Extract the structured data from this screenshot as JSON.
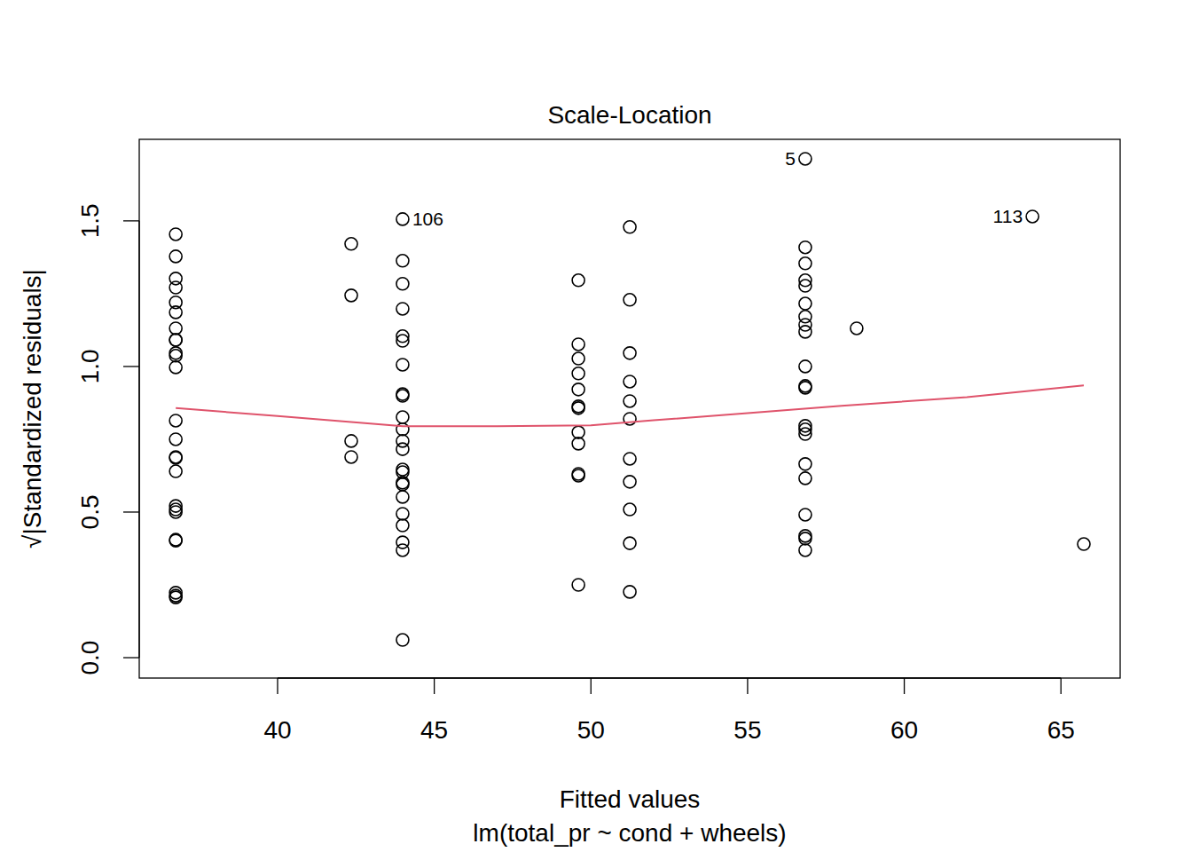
{
  "chart_data": {
    "type": "scatter",
    "title": "Scale-Location",
    "x_label": "Fitted values",
    "subtitle": "lm(total_pr ~ cond + wheels)",
    "y_label": "√|Standardized residuals|",
    "xlim": [
      35.585,
      66.89
    ],
    "ylim": [
      -0.07,
      1.78
    ],
    "xticks": [
      40,
      45,
      50,
      55,
      60,
      65
    ],
    "yticks": [
      {
        "value": 0,
        "label": "0.0"
      },
      {
        "value": 0.5,
        "label": "0.5"
      },
      {
        "value": 1,
        "label": "1.0"
      },
      {
        "value": 1.5,
        "label": "1.5"
      }
    ],
    "grid": false,
    "series": [
      {
        "type": "scatter",
        "marker": "circle",
        "color": "#000000",
        "x": [
          36.75,
          36.75,
          36.75,
          36.75,
          36.75,
          36.75,
          36.75,
          36.75,
          36.75,
          36.75,
          36.75,
          36.75,
          36.75,
          36.75,
          36.75,
          36.75,
          36.75,
          36.75,
          36.75,
          36.75,
          36.75,
          36.75,
          36.75,
          36.75,
          36.75,
          42.35,
          42.35,
          42.35,
          42.35,
          43.99,
          43.99,
          43.99,
          43.99,
          43.99,
          43.99,
          43.99,
          43.99,
          43.99,
          43.99,
          43.99,
          43.99,
          43.99,
          43.99,
          43.99,
          43.99,
          43.99,
          43.99,
          43.99,
          43.99,
          43.99,
          43.99,
          43.99,
          49.6,
          49.6,
          49.6,
          49.6,
          49.6,
          49.6,
          49.6,
          49.6,
          49.6,
          49.6,
          49.6,
          49.6,
          51.24,
          51.24,
          51.24,
          51.24,
          51.24,
          51.24,
          51.24,
          51.24,
          51.24,
          51.24,
          51.24,
          56.84,
          56.84,
          56.84,
          56.84,
          56.84,
          56.84,
          56.84,
          56.84,
          56.84,
          56.84,
          56.84,
          56.84,
          56.84,
          56.84,
          56.84,
          56.84,
          56.84,
          56.84,
          56.84,
          56.84,
          56.84,
          58.48,
          64.09,
          65.73
        ],
        "values": [
          1.454,
          1.378,
          1.302,
          1.271,
          1.22,
          1.186,
          1.131,
          1.091,
          1.091,
          1.046,
          1.037,
          0.997,
          0.814,
          0.75,
          0.689,
          0.686,
          0.64,
          0.521,
          0.509,
          0.5,
          0.405,
          0.402,
          0.223,
          0.213,
          0.207,
          1.421,
          1.244,
          0.744,
          0.689,
          1.506,
          1.363,
          1.284,
          1.198,
          1.104,
          1.088,
          1.006,
          0.905,
          0.899,
          0.826,
          0.784,
          0.744,
          0.716,
          0.646,
          0.637,
          0.601,
          0.595,
          0.552,
          0.494,
          0.454,
          0.396,
          0.369,
          0.061,
          1.296,
          1.076,
          1.027,
          0.976,
          0.921,
          0.863,
          0.857,
          0.774,
          0.735,
          0.631,
          0.625,
          0.25,
          1.479,
          1.229,
          1.046,
          0.948,
          0.881,
          0.82,
          0.683,
          0.604,
          0.509,
          0.393,
          0.226,
          1.713,
          1.409,
          1.354,
          1.296,
          1.277,
          1.216,
          1.171,
          1.143,
          1.119,
          1.0,
          0.933,
          0.927,
          0.796,
          0.784,
          0.768,
          0.665,
          0.616,
          0.491,
          0.418,
          0.409,
          0.369,
          1.131,
          1.515,
          0.39
        ]
      },
      {
        "type": "line",
        "line_style": "solid",
        "color": "#DF536B",
        "x": [
          36.75,
          40,
          44,
          47,
          50,
          52,
          55,
          58,
          62,
          65.73
        ],
        "values": [
          0.857,
          0.83,
          0.795,
          0.795,
          0.798,
          0.815,
          0.84,
          0.865,
          0.895,
          0.935
        ]
      }
    ],
    "annotations": [
      {
        "text": "5",
        "x": 56.84,
        "y": 1.713
      },
      {
        "text": "106",
        "x": 43.99,
        "y": 1.506
      },
      {
        "text": "113",
        "x": 64.09,
        "y": 1.515
      }
    ]
  }
}
